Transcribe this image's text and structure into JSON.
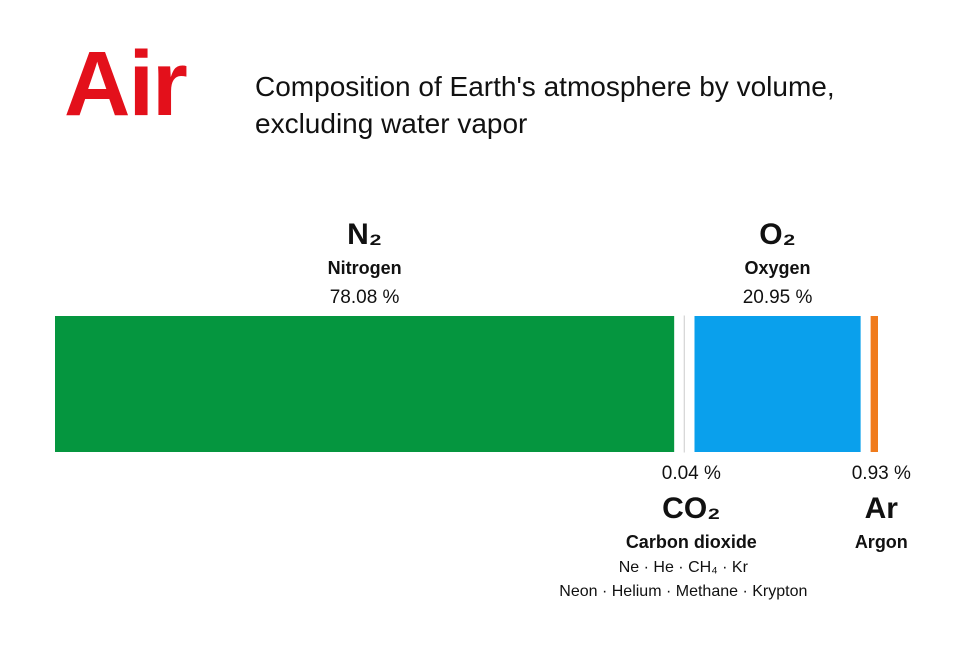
{
  "chart_data": {
    "type": "stacked-bar",
    "title": "Air",
    "subtitle": "Composition of Earth's atmosphere by volume, excluding water vapor",
    "categories": [
      "Nitrogen",
      "Carbon dioxide",
      "Oxygen",
      "Argon"
    ],
    "formulas": [
      "N₂",
      "CO₂",
      "O₂",
      "Ar"
    ],
    "values": [
      78.08,
      0.04,
      20.95,
      0.93
    ],
    "value_labels": [
      "78.08 %",
      "0.04 %",
      "20.95 %",
      "0.93 %"
    ],
    "colors": [
      "#05963f",
      "#ffffff",
      "#0aa0ec",
      "#f07b1c"
    ],
    "trace_gases": [
      "Ne · He · CH₄ · Kr",
      "Neon · Helium · Methane · Krypton"
    ]
  }
}
